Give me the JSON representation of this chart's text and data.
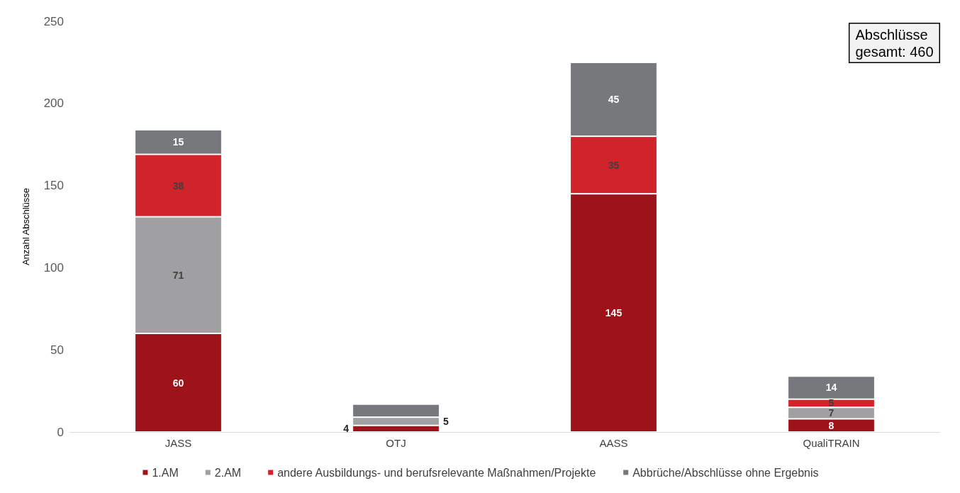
{
  "chart_data": {
    "type": "bar",
    "stacked": true,
    "ylabel": "Anzahl Abschlüsse",
    "categories": [
      "JASS",
      "OTJ",
      "AASS",
      "QualiTRAIN"
    ],
    "series": [
      {
        "name": "1.AM",
        "color": "#9e1219",
        "values": [
          60,
          4,
          145,
          8
        ],
        "value_labels": [
          "60",
          "4",
          "145",
          "8"
        ]
      },
      {
        "name": "2.AM",
        "color": "#a0a0a2",
        "values": [
          71,
          5,
          0,
          7
        ],
        "value_labels": [
          "71",
          "5",
          null,
          "7"
        ]
      },
      {
        "name": "andere Ausbildungs- und berufsrelevante Maßnahmen/Projekte",
        "color": "#d0242a",
        "values": [
          38,
          0,
          35,
          5
        ],
        "value_labels": [
          "38",
          null,
          "35",
          "5"
        ]
      },
      {
        "name": "Abbrüche/Abschlüsse ohne Ergebnis",
        "color": "#77787b",
        "values": [
          15,
          8,
          45,
          14
        ],
        "value_labels": [
          "15",
          null,
          "45",
          "14"
        ]
      }
    ],
    "ylim": [
      0,
      250
    ],
    "yticks": [
      0,
      50,
      100,
      150,
      200,
      250
    ],
    "grid": false,
    "legend": "bottom",
    "annotations": [
      "Abschlüsse\ngesamt: 460"
    ]
  }
}
